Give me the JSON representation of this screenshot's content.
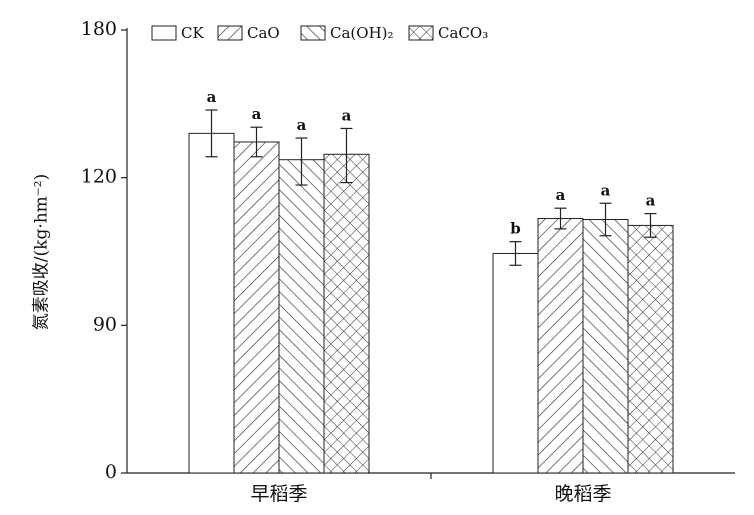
{
  "chart_data": {
    "type": "bar",
    "y_label": "氮素吸收/(kg·hm⁻²)",
    "categories": [
      "早稻季",
      "晚稻季"
    ],
    "series": [
      {
        "name": "CK",
        "pattern": "none",
        "values": [
          138,
          104.6
        ],
        "errors": [
          9.5,
          2.4
        ],
        "labels": [
          "a",
          "b"
        ]
      },
      {
        "name": "CaO",
        "pattern": "slash",
        "values": [
          134.5,
          111.7
        ],
        "errors": [
          6,
          2.1
        ],
        "labels": [
          "a",
          "a"
        ]
      },
      {
        "name": "Ca(OH)₂",
        "pattern": "backslash",
        "values": [
          127.3,
          111.5
        ],
        "errors": [
          8.8,
          3.3
        ],
        "labels": [
          "a",
          "a"
        ]
      },
      {
        "name": "CaCO₃",
        "pattern": "cross",
        "values": [
          129.5,
          110.3
        ],
        "errors": [
          10.5,
          2.4
        ],
        "labels": [
          "a",
          "a"
        ]
      }
    ],
    "ylim": [
      0,
      180
    ],
    "yticks": [
      0,
      90,
      120,
      180
    ]
  }
}
